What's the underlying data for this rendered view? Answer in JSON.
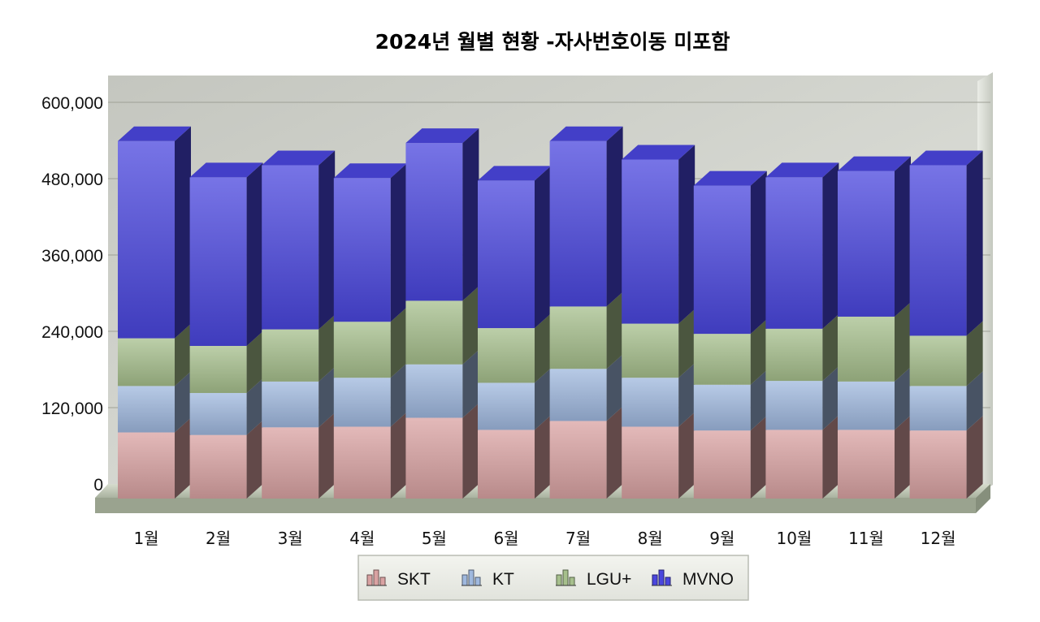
{
  "chart_data": {
    "type": "bar",
    "stacked": true,
    "style": "3d",
    "title": "2024년 월별 현황 -자사번호이동 미포함",
    "xlabel": "",
    "ylabel": "",
    "categories": [
      "1월",
      "2월",
      "3월",
      "4월",
      "5월",
      "6월",
      "7월",
      "8월",
      "9월",
      "10월",
      "11월",
      "12월"
    ],
    "series": [
      {
        "name": "SKT",
        "color": "#d9a2a2",
        "values": [
          104000,
          100000,
          112000,
          113000,
          127000,
          108000,
          122000,
          113000,
          107000,
          108000,
          108000,
          107000
        ]
      },
      {
        "name": "KT",
        "color": "#9fb8de",
        "values": [
          73000,
          66000,
          72000,
          77000,
          84000,
          74000,
          82000,
          77000,
          72000,
          77000,
          76000,
          70000
        ]
      },
      {
        "name": "LGU+",
        "color": "#a6bf8c",
        "values": [
          75000,
          74000,
          82000,
          88000,
          100000,
          86000,
          98000,
          85000,
          80000,
          82000,
          102000,
          79000
        ]
      },
      {
        "name": "MVNO",
        "color": "#4a46de",
        "values": [
          310000,
          265000,
          258000,
          226000,
          248000,
          232000,
          260000,
          258000,
          233000,
          238000,
          229000,
          268000
        ]
      }
    ],
    "ylim": [
      0,
      600000
    ],
    "yticks": [
      "0",
      "120,000",
      "240,000",
      "360,000",
      "480,000",
      "600,000"
    ],
    "ytick_values": [
      0,
      120000,
      240000,
      360000,
      480000,
      600000
    ],
    "grid": true,
    "legend_position": "bottom-center"
  },
  "legend_icon": "bar-chart-icon"
}
